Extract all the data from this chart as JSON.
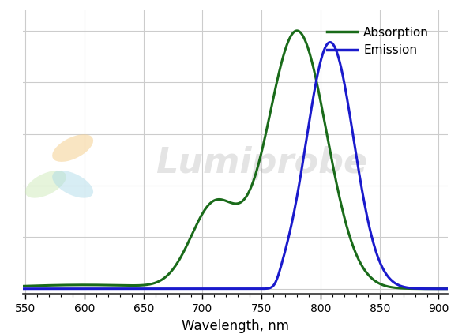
{
  "title": "",
  "xlabel": "Wavelength, nm",
  "ylabel": "",
  "xlim": [
    548,
    908
  ],
  "ylim": [
    -0.02,
    1.08
  ],
  "xticks": [
    550,
    600,
    650,
    700,
    750,
    800,
    850,
    900
  ],
  "grid": true,
  "grid_color": "#cccccc",
  "absorption_color": "#1a6b1a",
  "emission_color": "#1a1acc",
  "legend_absorption": "Absorption",
  "legend_emission": "Emission",
  "background_color": "#ffffff",
  "line_width": 2.2,
  "watermark_text": "Lumiprobe",
  "figsize": [
    5.85,
    4.23
  ],
  "dpi": 100
}
